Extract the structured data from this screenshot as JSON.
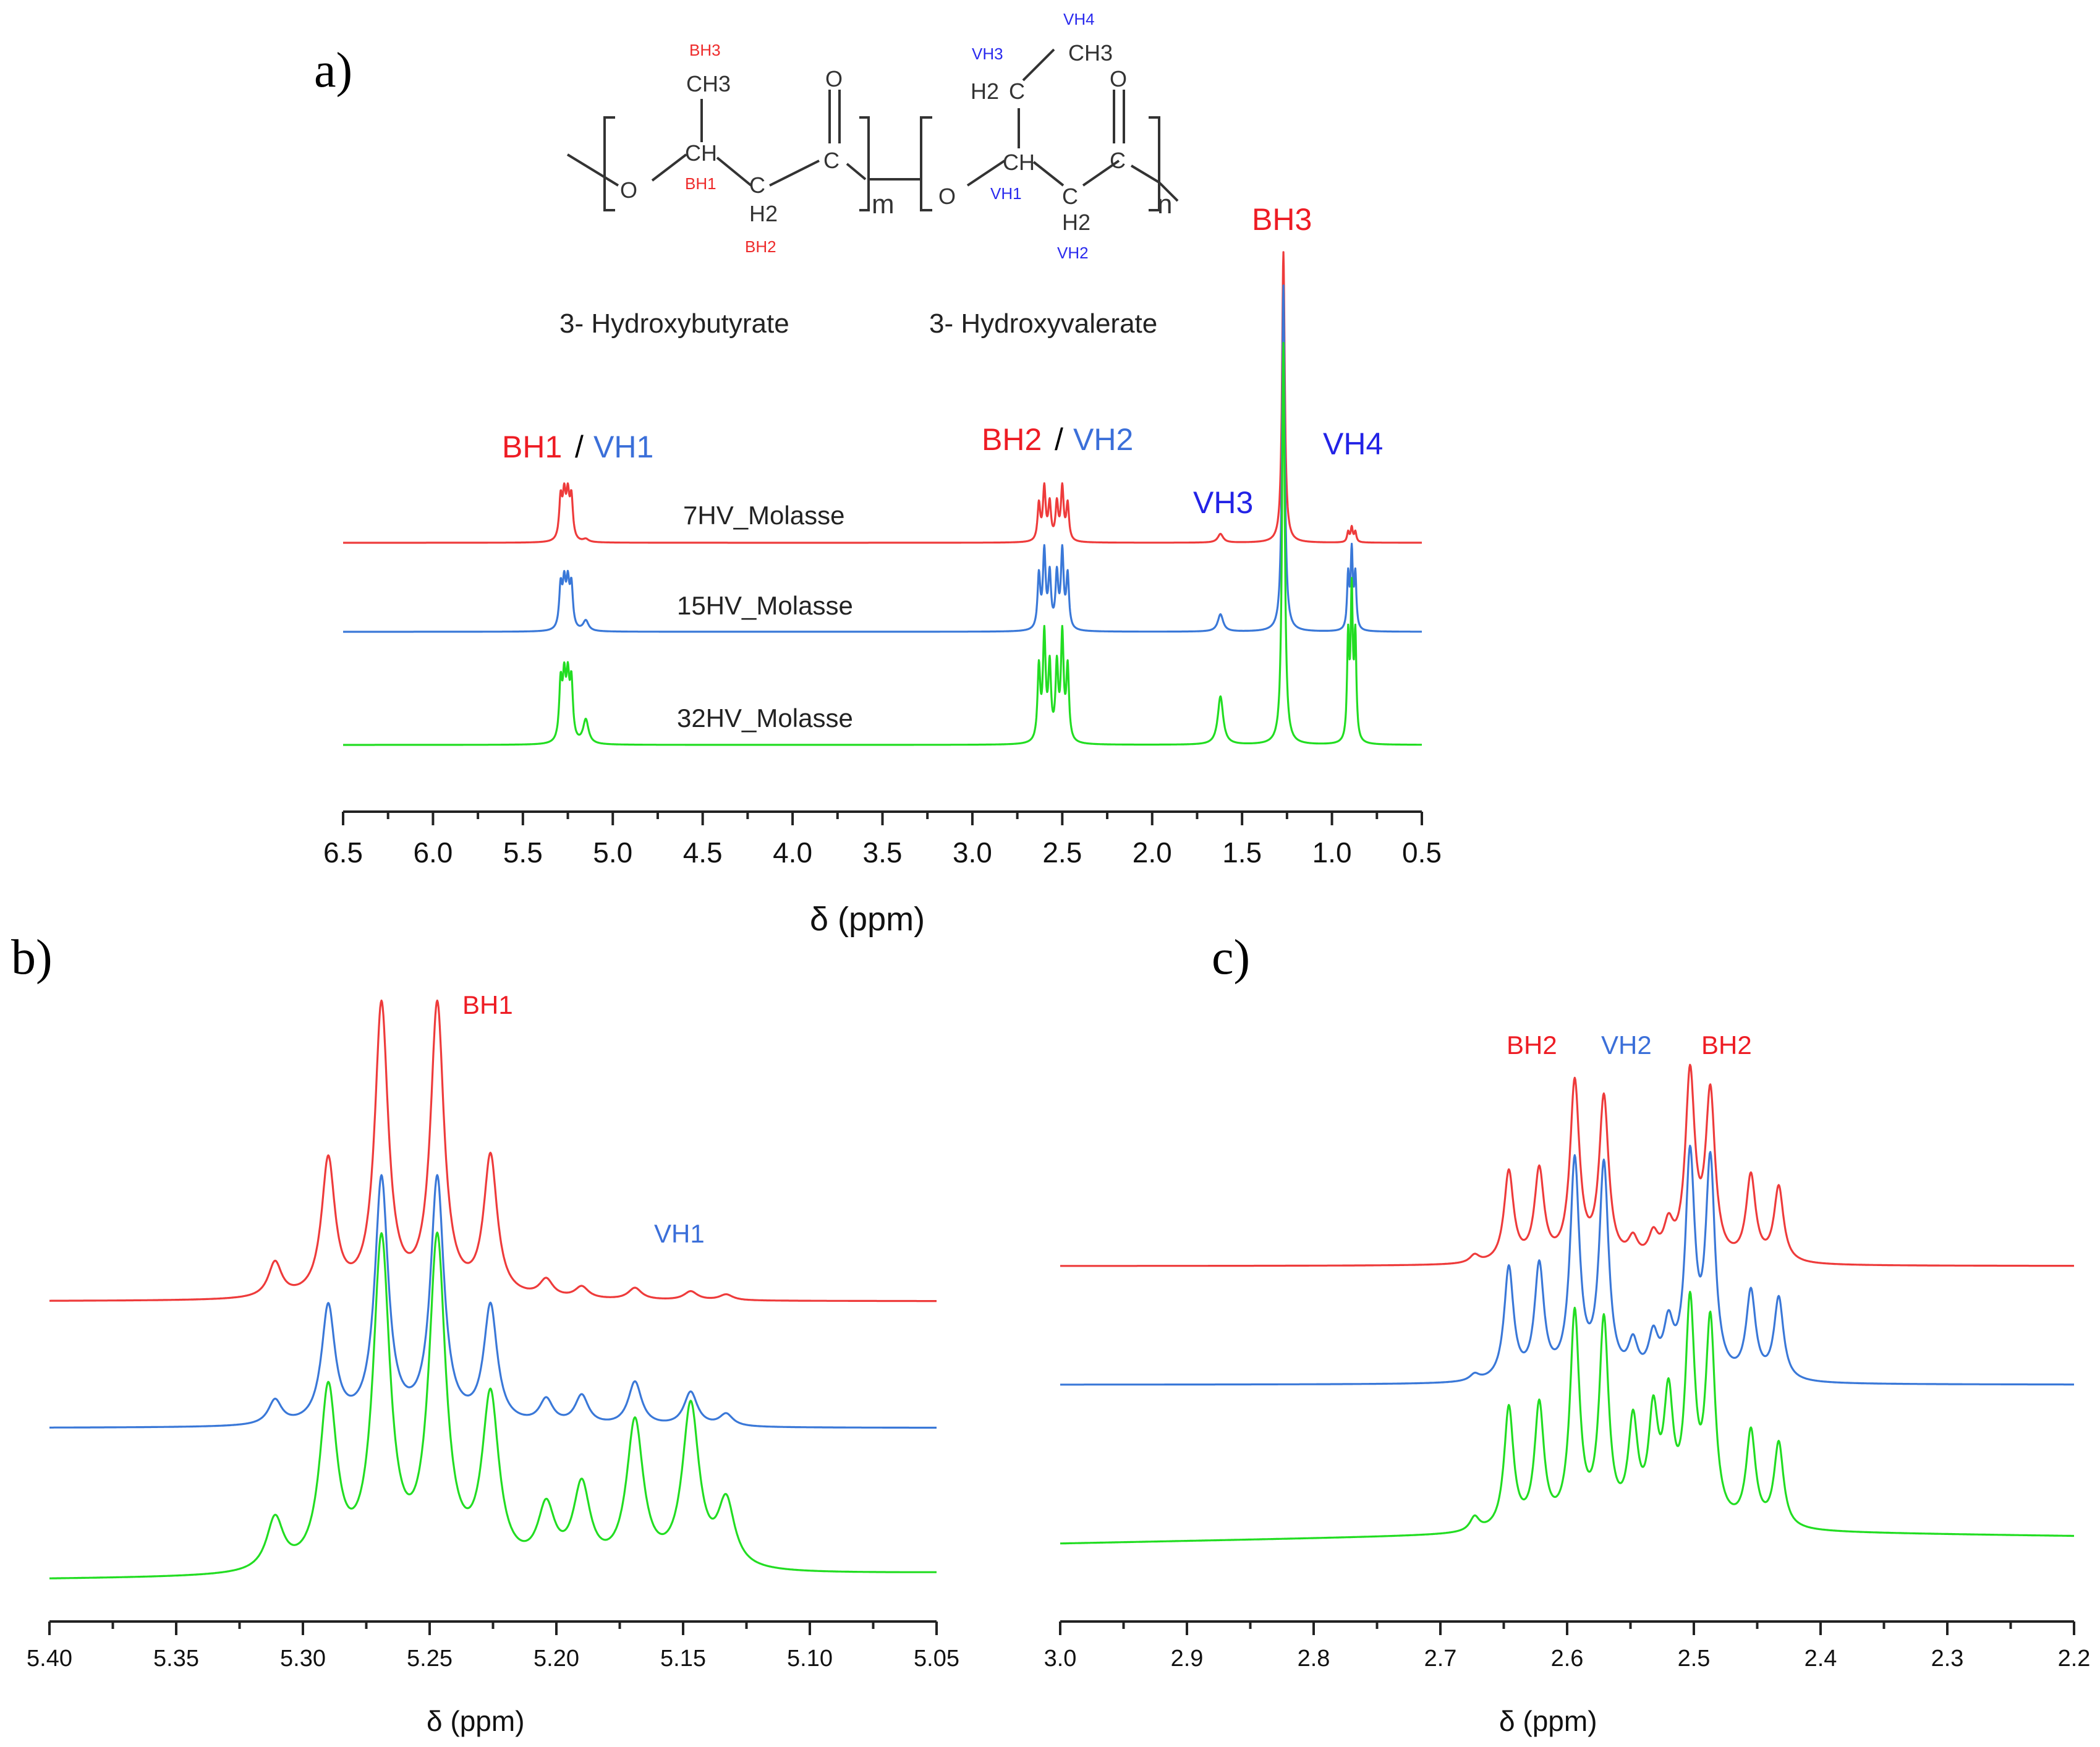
{
  "panel_labels": [
    "a)",
    "b)",
    "c)"
  ],
  "structure": {
    "monomer_labels": [
      "3- Hydroxybutyrate",
      "3- Hydroxyvalerate"
    ],
    "subscripts": [
      "m",
      "n"
    ],
    "atoms": {
      "o1": "O",
      "o2": "O",
      "c1": "C",
      "c2": "C",
      "ch1": "CH",
      "ch2": "CH",
      "ch3a": "CH3",
      "ch3b": "CH3",
      "h2a": "H2",
      "h2b": "H2",
      "h2c_a": "H2",
      "h2c_b": "C",
      "h2c_c": "C",
      "ho1": "O",
      "ho2": "O"
    },
    "hb_labels": {
      "bh1": "BH1",
      "bh2": "BH2",
      "bh3": "BH3"
    },
    "hv_labels": {
      "vh1": "VH1",
      "vh2": "VH2",
      "vh3": "VH3",
      "vh4": "VH4"
    }
  },
  "chart_data": [
    {
      "type": "line",
      "panel": "a)",
      "xlabel": "δ (ppm)",
      "xlim": [
        6.5,
        0.5
      ],
      "x_ticks": [
        "6.5",
        "6.0",
        "5.5",
        "5.0",
        "4.5",
        "4.0",
        "3.5",
        "3.0",
        "2.5",
        "2.0",
        "1.5",
        "1.0",
        "0.5"
      ],
      "series": [
        {
          "name": "7HV_Molasse",
          "color": "#ee3b3b"
        },
        {
          "name": "15HV_Molasse",
          "color": "#3a78d8"
        },
        {
          "name": "32HV_Molasse",
          "color": "#22dd22"
        }
      ],
      "peaks": [
        {
          "ppm": 5.25,
          "intensities": [
            0.14,
            0.12,
            0.14
          ]
        },
        {
          "ppm": 5.15,
          "intensities": [
            0.01,
            0.03,
            0.06
          ]
        },
        {
          "ppm": 2.55,
          "intensities": [
            0.18,
            0.22,
            0.26
          ]
        },
        {
          "ppm": 1.62,
          "intensities": [
            0.03,
            0.05,
            0.12
          ]
        },
        {
          "ppm": 1.27,
          "intensities": [
            1.0,
            1.0,
            1.0
          ]
        },
        {
          "ppm": 0.89,
          "intensities": [
            0.05,
            0.22,
            0.36
          ]
        }
      ],
      "annotations": {
        "bh1": "BH1",
        "slash1": "/",
        "vh1": "VH1",
        "bh2": "BH2",
        "slash2": "/",
        "vh2": "VH2",
        "vh3": "VH3",
        "bh3": "BH3",
        "vh4": "VH4"
      }
    },
    {
      "type": "line",
      "panel": "b)",
      "xlabel": "δ (ppm)",
      "xlim": [
        5.4,
        5.05
      ],
      "x_ticks": [
        "5.40",
        "5.35",
        "5.30",
        "5.25",
        "5.20",
        "5.15",
        "5.10",
        "5.05"
      ],
      "series": [
        {
          "name": "",
          "color": "#ee3b3b"
        },
        {
          "name": "",
          "color": "#3a78d8"
        },
        {
          "name": "",
          "color": "#22dd22"
        }
      ],
      "peaks_ppm": [
        5.311,
        5.29,
        5.269,
        5.247,
        5.226,
        5.204,
        5.19,
        5.169,
        5.147,
        5.133
      ],
      "annotations": {
        "bh1": "BH1",
        "vh1": "VH1"
      }
    },
    {
      "type": "line",
      "panel": "c)",
      "xlabel": "δ (ppm)",
      "xlim": [
        3.0,
        2.2
      ],
      "x_ticks": [
        "3.0",
        "2.9",
        "2.8",
        "2.7",
        "2.6",
        "2.5",
        "2.4",
        "2.3",
        "2.2"
      ],
      "series": [
        {
          "name": "",
          "color": "#ee3b3b"
        },
        {
          "name": "",
          "color": "#3a78d8"
        },
        {
          "name": "",
          "color": "#22dd22"
        }
      ],
      "peaks_ppm": [
        2.673,
        2.646,
        2.622,
        2.594,
        2.571,
        2.548,
        2.532,
        2.52,
        2.503,
        2.487,
        2.455,
        2.433
      ],
      "annotations": {
        "bh2a": "BH2",
        "vh2": "VH2",
        "bh2b": "BH2"
      }
    }
  ]
}
